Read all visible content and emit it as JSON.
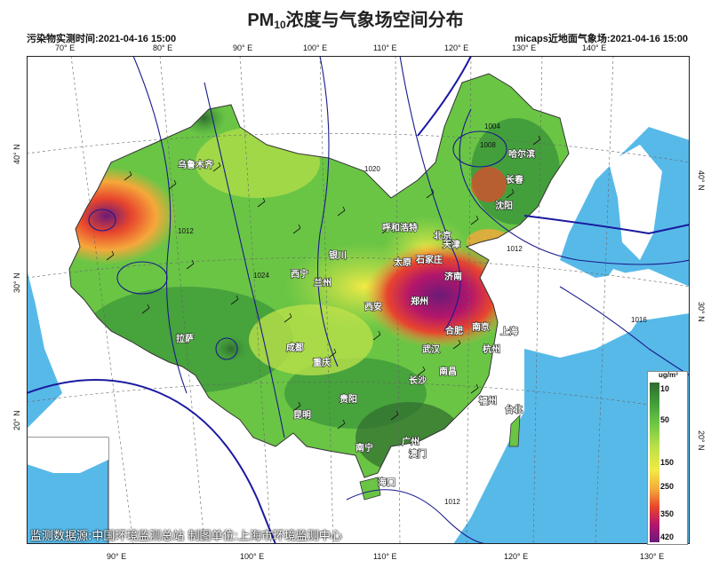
{
  "title": {
    "main": "PM",
    "sub": "10",
    "rest": "浓度与气象场空间分布"
  },
  "header": {
    "left": "污染物实测时间:2021-04-16 15:00",
    "right": "micaps近地面气象场:2021-04-16 15:00"
  },
  "top_lon_ticks": [
    "70° E",
    "80° E",
    "90° E",
    "100° E",
    "110° E",
    "120° E",
    "130° E",
    "140° E"
  ],
  "bottom_lon_ticks": [
    "90° E",
    "100° E",
    "110° E",
    "120° E",
    "130° E"
  ],
  "lat_ticks": [
    "20° N",
    "30° N",
    "40° N"
  ],
  "cities": [
    "乌鲁木齐",
    "哈尔滨",
    "长春",
    "沈阳",
    "呼和浩特",
    "北京",
    "天津",
    "银川",
    "太原",
    "石家庄",
    "济南",
    "西宁",
    "兰州",
    "郑州",
    "西安",
    "合肥",
    "南京",
    "上海",
    "拉萨",
    "成都",
    "武汉",
    "杭州",
    "重庆",
    "南昌",
    "长沙",
    "贵阳",
    "福州",
    "台北",
    "昆明",
    "南宁",
    "广州",
    "澳门",
    "海口"
  ],
  "isobars": [
    "1004",
    "1008",
    "1012",
    "1016",
    "1020",
    "1024"
  ],
  "legend": {
    "unit": "ug/m³",
    "labels": [
      "10",
      "50",
      "150",
      "250",
      "350",
      "420"
    ]
  },
  "footer": "监测数据源:中国环境监测总站   制图单位:上海市环境监测中心",
  "colors": {
    "sea": "#57b9e8",
    "land_outside": "#ffffff",
    "low": "#3f9a3a",
    "mid": "#f2ea45",
    "high": "#e8452d",
    "extreme": "#6b1a78"
  }
}
